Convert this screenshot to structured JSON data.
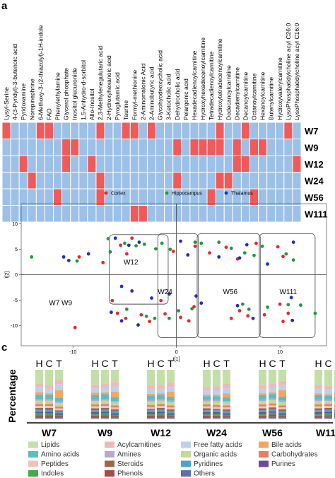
{
  "panels": {
    "a": "a",
    "b": "b",
    "c": "c"
  },
  "chart_data": [
    {
      "type": "heatmap",
      "panel": "a",
      "colors": {
        "on": "#ef5a5a",
        "off": "#9cc0e7",
        "grid": "#ffffff"
      },
      "columns": [
        "Lysyl-Serine",
        "4-(3-Pyridyl)-3-butenoic acid",
        "Pyridoxamine",
        "Norepinephrine",
        "6-Methoxy-3-(2-thiazolyl)-1H-indole",
        "FAD",
        "Phenylethylamine",
        "Glycerol phosphate",
        "Inositol glucuronide",
        "1,5-Anhydro-d-sorbitol",
        "Allo-Inositol",
        "2,3-Methylenegulutaric acid",
        "2-Hydroxyhexanoic acid",
        "Pyroglutamic acid",
        "Taurine",
        "Formyl-methionine",
        "2-Aminomalonic Acid",
        "2-Aminobutyric acid",
        "Glycohyodeoxycholic acid",
        "3-Ketocholic acid",
        "Dehydrocholic acid",
        "Pelargonic acid",
        "Hexadecadienoylcarnitine",
        "Hydroxyhexadecenoylcarnitine",
        "Tetradecadienoylcarnitine",
        "Hydroxytetradecenoylcarnitine",
        "Dodecanoylcarnitine",
        "Decadienylcarnitine",
        "Decanoylcarnitine",
        "Octanoylcarnitine",
        "Hexanoylcarnitine",
        "Butenylcarnitine",
        "Hydroxyvalerylcarnitine",
        "LysoPhosphatidylcholine acyl C26:0",
        "LysoPhosphatidylcholine acyl C16:0"
      ],
      "rows": [
        {
          "label": "W7",
          "on": [
            0,
            4,
            5,
            11,
            14,
            15,
            17,
            25,
            28,
            33
          ]
        },
        {
          "label": "W9",
          "on": [
            7,
            8,
            20,
            22,
            23,
            24,
            25,
            27,
            29,
            30
          ]
        },
        {
          "label": "W12",
          "on": [
            2,
            7,
            10,
            27,
            28,
            34
          ]
        },
        {
          "label": "W24",
          "on": [
            3,
            11,
            20,
            25,
            26
          ]
        },
        {
          "label": "W56",
          "on": [
            6,
            11,
            24,
            29
          ]
        },
        {
          "label": "W111",
          "on": [
            15,
            16
          ]
        }
      ]
    },
    {
      "type": "scatter",
      "panel": "b",
      "xlabel": "t[1]",
      "ylabel": "t[2]",
      "xlim": [
        -15,
        14.5
      ],
      "ylim": [
        -14,
        14
      ],
      "xticks": [
        -10,
        0,
        10
      ],
      "yticks": [
        -10,
        -5,
        0,
        5,
        10
      ],
      "legend_position": "top",
      "series": [
        {
          "name": "Cortex",
          "color": "#e8262a",
          "points": [
            [
              -9.4,
              3.5
            ],
            [
              -4.3,
              7.2
            ],
            [
              -7.1,
              2.4
            ],
            [
              -5.4,
              5.8
            ],
            [
              -4.8,
              4.1
            ],
            [
              -6.2,
              -5.1
            ],
            [
              -5.7,
              -7.6
            ],
            [
              -9.8,
              -10.4
            ],
            [
              -4.9,
              -8.6
            ],
            [
              -2.6,
              -9.2
            ],
            [
              -1.1,
              -7.7
            ],
            [
              -3.4,
              -7.9
            ],
            [
              0.4,
              -8.4
            ],
            [
              -1.5,
              -5.1
            ],
            [
              -0.3,
              4.6
            ],
            [
              1.8,
              5.6
            ],
            [
              1.7,
              -6.3
            ],
            [
              1.2,
              -9.1
            ],
            [
              3.2,
              4.3
            ],
            [
              4.8,
              5.4
            ],
            [
              5.9,
              3.1
            ],
            [
              7.7,
              6.2
            ],
            [
              6.1,
              -7.1
            ],
            [
              6.9,
              -8.1
            ],
            [
              5.3,
              -8.6
            ],
            [
              9.8,
              5.5
            ],
            [
              10.3,
              3.6
            ],
            [
              10.0,
              -5.8
            ],
            [
              10.3,
              -9.2
            ],
            [
              10.8,
              -7.6
            ],
            [
              8.5,
              -7.9
            ]
          ]
        },
        {
          "name": "Hippocampus",
          "color": "#1f9a3a",
          "points": [
            [
              -14.0,
              3.5
            ],
            [
              -9.6,
              2.7
            ],
            [
              -6.6,
              7.1
            ],
            [
              -5.0,
              6.2
            ],
            [
              -6.4,
              4.5
            ],
            [
              -3.9,
              5.7
            ],
            [
              -3.1,
              6.0
            ],
            [
              -2.0,
              5.1
            ],
            [
              -1.4,
              6.2
            ],
            [
              -0.6,
              5.0
            ],
            [
              -2.9,
              -8.2
            ],
            [
              -2.1,
              -8.6
            ],
            [
              -0.7,
              -8.6
            ],
            [
              -4.8,
              -6.8
            ],
            [
              1.8,
              6.4
            ],
            [
              2.4,
              6.2
            ],
            [
              0.2,
              -7.1
            ],
            [
              1.5,
              -6.7
            ],
            [
              5.3,
              5.2
            ],
            [
              6.6,
              4.3
            ],
            [
              4.1,
              6.4
            ],
            [
              7.5,
              3.8
            ],
            [
              6.4,
              -5.8
            ],
            [
              7.0,
              -6.8
            ],
            [
              8.3,
              5.6
            ],
            [
              10.6,
              4.1
            ],
            [
              11.3,
              2.9
            ],
            [
              10.8,
              -5.9
            ],
            [
              12.0,
              -6.0
            ],
            [
              8.8,
              -6.4
            ],
            [
              13.4,
              -7.6
            ]
          ]
        },
        {
          "name": "Thalamus",
          "color": "#1f2fb8",
          "points": [
            [
              -10.9,
              3.5
            ],
            [
              -10.4,
              2.8
            ],
            [
              -8.5,
              4.1
            ],
            [
              -5.9,
              7.2
            ],
            [
              -4.6,
              5.8
            ],
            [
              -3.6,
              6.4
            ],
            [
              -5.3,
              -2.3
            ],
            [
              -4.3,
              -3.2
            ],
            [
              -2.4,
              -4.6
            ],
            [
              -5.3,
              -9.1
            ],
            [
              -3.7,
              -9.9
            ],
            [
              -6.3,
              -7.4
            ],
            [
              -0.7,
              -3.8
            ],
            [
              0.4,
              6.6
            ],
            [
              1.1,
              3.9
            ],
            [
              1.9,
              -4.2
            ],
            [
              2.4,
              -5.6
            ],
            [
              4.1,
              3.5
            ],
            [
              6.1,
              3.3
            ],
            [
              6.8,
              5.9
            ],
            [
              5.9,
              -6.1
            ],
            [
              7.4,
              -8.6
            ],
            [
              8.8,
              2.1
            ],
            [
              11.3,
              6.4
            ],
            [
              11.2,
              -9.0
            ],
            [
              11.1,
              -4.5
            ]
          ]
        }
      ],
      "group_labels": [
        "W7 W9",
        "W12",
        "W24",
        "W56",
        "W111"
      ]
    },
    {
      "type": "bar",
      "stacked": true,
      "panel": "c",
      "ylabel": "Percentage",
      "ylim": [
        0,
        100
      ],
      "groups": [
        "W7",
        "W9",
        "W12",
        "W24",
        "W56",
        "W111"
      ],
      "bar_labels": [
        "H",
        "C",
        "T"
      ],
      "categories": [
        "Lipids",
        "Acylcarnitines",
        "Free fatty acids",
        "Bile acids",
        "Amino acids",
        "Amines",
        "Organic acids",
        "Carbohydrates",
        "Peptides",
        "Steroids",
        "Pyridines",
        "Purines",
        "Indoles",
        "Phenols",
        "Others"
      ],
      "colors": [
        "#c3dfa6",
        "#eeb9bb",
        "#bcd1ee",
        "#f4a660",
        "#5bbcc6",
        "#b5a9d1",
        "#c6d891",
        "#e87e63",
        "#ecc3c0",
        "#9a6a47",
        "#4fa2cf",
        "#6a4b9e",
        "#43a94a",
        "#a54a4e",
        "#5e6fae"
      ],
      "stack_order": [
        14,
        13,
        12,
        11,
        10,
        9,
        8,
        7,
        6,
        5,
        4,
        3,
        2,
        1,
        0
      ],
      "values": [
        [
          [
            28,
            8,
            10,
            5,
            9,
            3,
            7,
            4,
            4,
            4,
            4,
            3,
            4,
            4,
            3
          ],
          [
            31,
            8,
            9,
            3,
            9,
            3,
            7,
            4,
            4,
            4,
            4,
            3,
            4,
            4,
            3
          ],
          [
            21,
            9,
            12,
            15,
            8,
            3,
            7,
            4,
            4,
            3,
            3,
            3,
            3,
            3,
            2
          ]
        ],
        [
          [
            30,
            8,
            9,
            5,
            9,
            3,
            7,
            4,
            4,
            4,
            4,
            3,
            4,
            3,
            3
          ],
          [
            29,
            8,
            9,
            4,
            10,
            3,
            7,
            4,
            4,
            4,
            4,
            3,
            4,
            4,
            3
          ],
          [
            25,
            9,
            11,
            11,
            8,
            3,
            6,
            4,
            4,
            4,
            4,
            3,
            3,
            3,
            2
          ]
        ],
        [
          [
            32,
            8,
            9,
            4,
            9,
            3,
            7,
            4,
            4,
            3,
            4,
            3,
            4,
            3,
            3
          ],
          [
            31,
            8,
            9,
            3,
            9,
            3,
            7,
            4,
            4,
            4,
            4,
            3,
            4,
            4,
            3
          ],
          [
            26,
            9,
            10,
            10,
            8,
            3,
            7,
            4,
            4,
            4,
            4,
            3,
            3,
            3,
            2
          ]
        ],
        [
          [
            35,
            8,
            8,
            3,
            8,
            3,
            6,
            4,
            4,
            4,
            4,
            3,
            4,
            3,
            3
          ],
          [
            34,
            8,
            9,
            3,
            8,
            3,
            7,
            4,
            4,
            3,
            4,
            3,
            4,
            3,
            3
          ],
          [
            29,
            9,
            10,
            8,
            8,
            3,
            6,
            4,
            4,
            4,
            4,
            3,
            3,
            3,
            2
          ]
        ],
        [
          [
            31,
            8,
            9,
            4,
            9,
            3,
            7,
            4,
            4,
            4,
            4,
            3,
            4,
            3,
            3
          ],
          [
            29,
            8,
            9,
            4,
            9,
            3,
            7,
            4,
            4,
            4,
            4,
            3,
            4,
            4,
            4
          ],
          [
            23,
            8,
            11,
            13,
            8,
            3,
            7,
            4,
            4,
            4,
            4,
            3,
            3,
            3,
            2
          ]
        ],
        [
          [
            31,
            8,
            9,
            4,
            9,
            3,
            7,
            4,
            4,
            4,
            4,
            3,
            4,
            3,
            3
          ],
          [
            33,
            8,
            9,
            3,
            8,
            3,
            6,
            4,
            4,
            4,
            4,
            3,
            4,
            3,
            4
          ],
          [
            30,
            8,
            10,
            8,
            8,
            3,
            6,
            4,
            4,
            4,
            4,
            3,
            3,
            3,
            2
          ]
        ]
      ]
    }
  ]
}
